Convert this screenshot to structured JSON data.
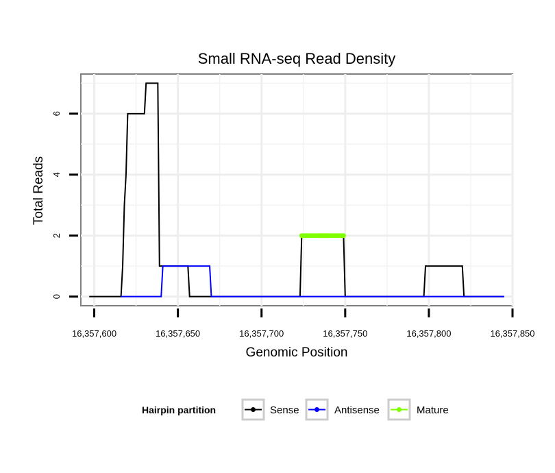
{
  "chart_data": {
    "type": "line",
    "title": "Small RNA-seq Read Density",
    "xlabel": "Genomic Position",
    "ylabel": "Total Reads",
    "xlim": [
      16357592,
      16357850
    ],
    "ylim": [
      -0.3,
      7.3
    ],
    "x_ticks": [
      16357600,
      16357650,
      16357700,
      16357750,
      16357800,
      16357850
    ],
    "x_tick_labels": [
      "16,357,600",
      "16,357,650",
      "16,357,700",
      "16,357,750",
      "16,357,800",
      "16,357,850"
    ],
    "y_ticks": [
      0,
      2,
      4,
      6
    ],
    "y_tick_labels": [
      "0",
      "2",
      "4",
      "6"
    ],
    "grid": true,
    "legend": {
      "title": "Hairpin partition",
      "position": "bottom",
      "entries": [
        "Sense",
        "Antisense",
        "Mature"
      ]
    },
    "series": [
      {
        "name": "Sense",
        "color": "#000000",
        "points": [
          [
            16357597,
            0
          ],
          [
            16357616,
            0
          ],
          [
            16357617,
            1
          ],
          [
            16357618,
            3
          ],
          [
            16357619,
            4
          ],
          [
            16357620,
            6
          ],
          [
            16357630,
            6
          ],
          [
            16357631,
            7
          ],
          [
            16357638,
            7
          ],
          [
            16357639,
            1
          ],
          [
            16357656,
            1
          ],
          [
            16357657,
            0
          ],
          [
            16357723,
            0
          ],
          [
            16357724,
            2
          ],
          [
            16357749,
            2
          ],
          [
            16357750,
            0
          ],
          [
            16357797,
            0
          ],
          [
            16357798,
            1
          ],
          [
            16357820,
            1
          ],
          [
            16357821,
            0
          ],
          [
            16357845,
            0
          ]
        ]
      },
      {
        "name": "Antisense",
        "color": "#0000ff",
        "points": [
          [
            16357616,
            0
          ],
          [
            16357640,
            0
          ],
          [
            16357641,
            1
          ],
          [
            16357669,
            1
          ],
          [
            16357670,
            0
          ],
          [
            16357845,
            0
          ]
        ]
      },
      {
        "name": "Mature",
        "color": "#7fff00",
        "points": [
          [
            16357724,
            2
          ],
          [
            16357749,
            2
          ]
        ]
      }
    ]
  }
}
